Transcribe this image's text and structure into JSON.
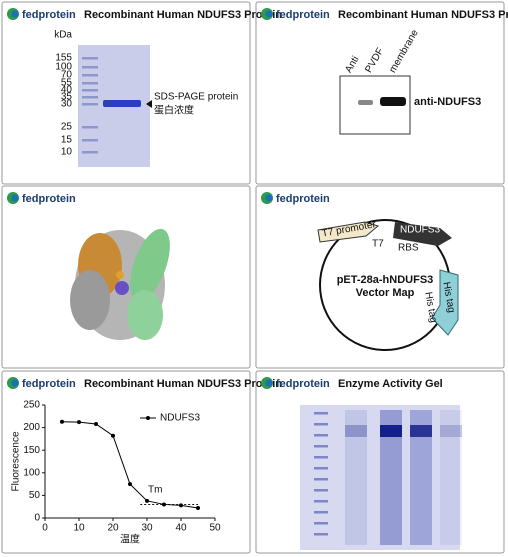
{
  "panels": [
    {
      "logo": "fedprotein",
      "title": "Recombinant Human NDUFS3 Protein",
      "gel": {
        "unit": "kDa",
        "markers": [
          "155",
          "100",
          "70",
          "55",
          "40",
          "35",
          "30",
          "25",
          "15",
          "10"
        ],
        "label": "SDS-PAGE protein",
        "label2": "蛋白浓度"
      }
    },
    {
      "logo": "fedprotein",
      "title": "Recombinant Human NDUFS3 Protein",
      "blot": {
        "lanes": [
          "Anti",
          "PVDF",
          "membrane"
        ],
        "label": "anti-NDUFS3"
      }
    },
    {
      "logo": "fedprotein"
    },
    {
      "logo": "fedprotein",
      "map": {
        "promoter": "T7 promoter",
        "t7": "T7",
        "gene": "NDUFS3",
        "rbs": "RBS",
        "name": "pET-28a-hNDUFS3",
        "subtitle": "Vector Map",
        "tag": "His tag",
        "tag2": "His tag"
      }
    },
    {
      "logo": "fedprotein",
      "title": "Recombinant Human NDUFS3 Protein"
    },
    {
      "logo": "fedprotein",
      "title": "Enzyme Activity Gel"
    }
  ],
  "chart_data": {
    "type": "line",
    "xlabel": "温度",
    "ylabel": "Fluorescence",
    "annotation": "Tm",
    "x": [
      5,
      10,
      15,
      20,
      25,
      30,
      35,
      40,
      45
    ],
    "series": [
      {
        "name": "NDUFS3",
        "color": "#000000",
        "values": [
          213,
          212,
          208,
          182,
          75,
          38,
          30,
          28,
          22
        ]
      }
    ],
    "xlim": [
      0,
      50
    ],
    "ylim": [
      0,
      250
    ],
    "xticks": [
      0,
      10,
      20,
      30,
      40,
      50
    ],
    "yticks": [
      0,
      50,
      100,
      150,
      200,
      250
    ]
  }
}
